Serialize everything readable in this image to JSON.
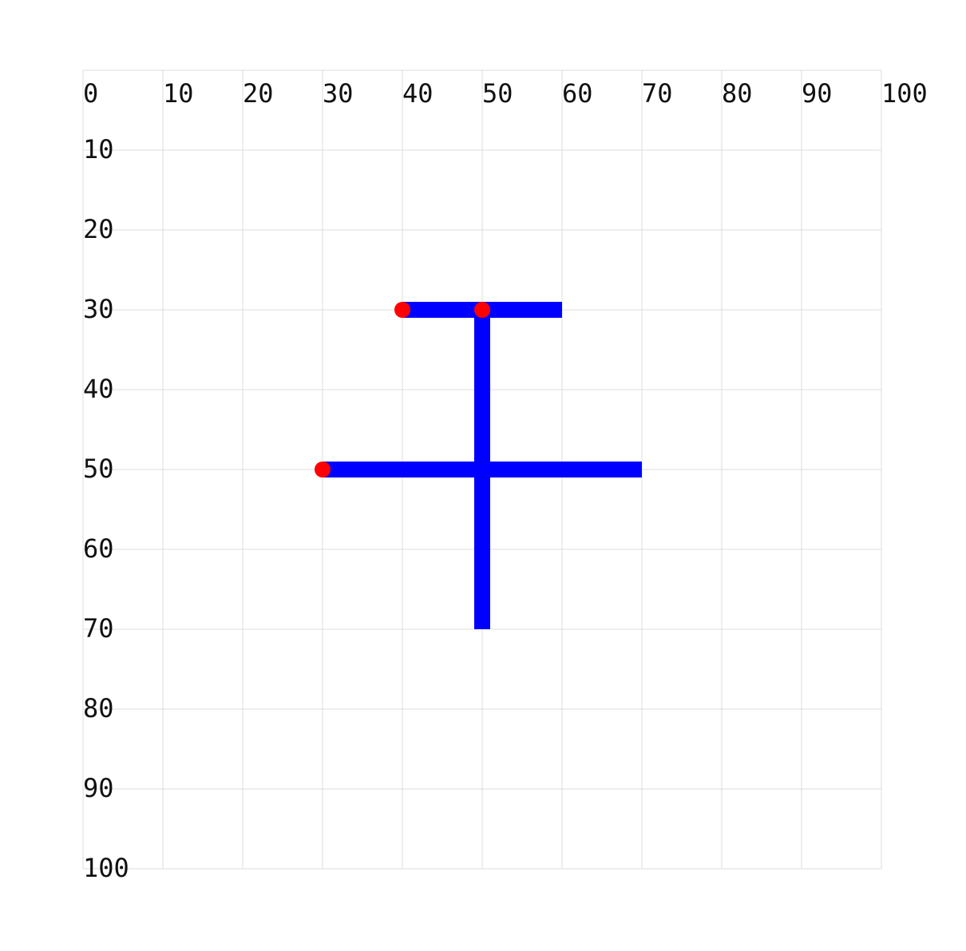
{
  "chart_data": {
    "type": "diagram",
    "x_ticks": [
      "0",
      "10",
      "20",
      "30",
      "40",
      "50",
      "60",
      "70",
      "80",
      "90",
      "100"
    ],
    "y_ticks": [
      "10",
      "20",
      "30",
      "40",
      "50",
      "60",
      "70",
      "80",
      "90",
      "100"
    ],
    "xlim": [
      0,
      100
    ],
    "ylim": [
      0,
      100
    ],
    "y_axis_inverted": true,
    "grid": true,
    "stroke_color": "#0000ff",
    "point_color": "#ff0000",
    "strokes": [
      {
        "from": [
          40,
          30
        ],
        "to": [
          60,
          30
        ]
      },
      {
        "from": [
          50,
          30
        ],
        "to": [
          50,
          70
        ]
      },
      {
        "from": [
          30,
          50
        ],
        "to": [
          70,
          50
        ]
      }
    ],
    "points": [
      [
        40,
        30
      ],
      [
        50,
        30
      ],
      [
        30,
        50
      ]
    ]
  }
}
